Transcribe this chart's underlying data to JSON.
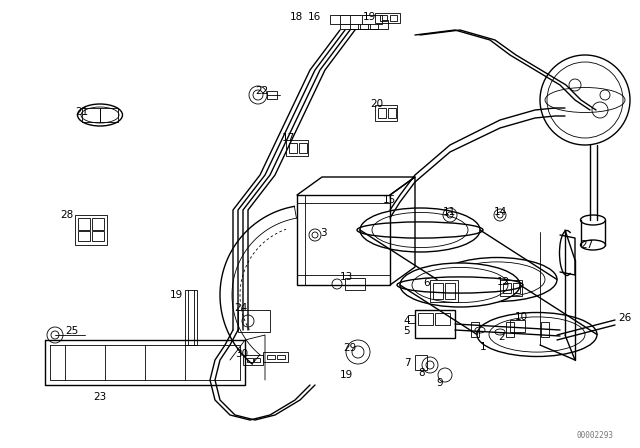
{
  "bg_color": "#ffffff",
  "line_color": "#000000",
  "fig_width": 6.4,
  "fig_height": 4.48,
  "dpi": 100,
  "watermark": "00002293"
}
